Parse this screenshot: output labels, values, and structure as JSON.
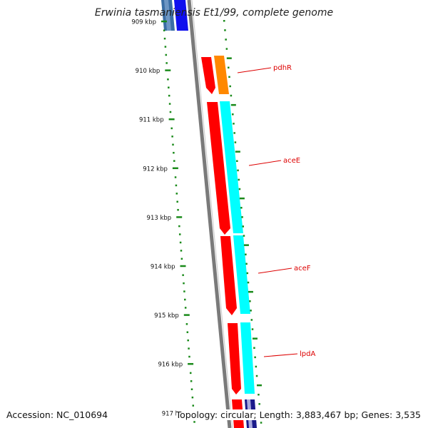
{
  "title": "Erwinia tasmaniensis Et1/99, complete genome",
  "footer": {
    "accession": "Accession: NC_010694",
    "topology": "Topology: circular; Length: 3,883,467 bp; Genes: 3,535"
  },
  "colors": {
    "backbone": "#808080",
    "tick": "#1a8a1a",
    "gc_skew": "#00cc00",
    "gene_label": "#dd0000"
  },
  "scale_ticks": [
    "909 kbp",
    "910 kbp",
    "911 kbp",
    "912 kbp",
    "913 kbp",
    "914 kbp",
    "915 kbp",
    "916 kbp",
    "917 kbp"
  ],
  "genes": [
    {
      "name": "pdhR",
      "cds_color": "#ff0000",
      "feature_color": "#ff8800"
    },
    {
      "name": "aceE",
      "cds_color": "#ff0000",
      "feature_color": "#00ffff"
    },
    {
      "name": "aceF",
      "cds_color": "#ff0000",
      "feature_color": "#00ffff"
    },
    {
      "name": "lpdA",
      "cds_color": "#ff0000",
      "feature_color": "#00ffff"
    }
  ]
}
